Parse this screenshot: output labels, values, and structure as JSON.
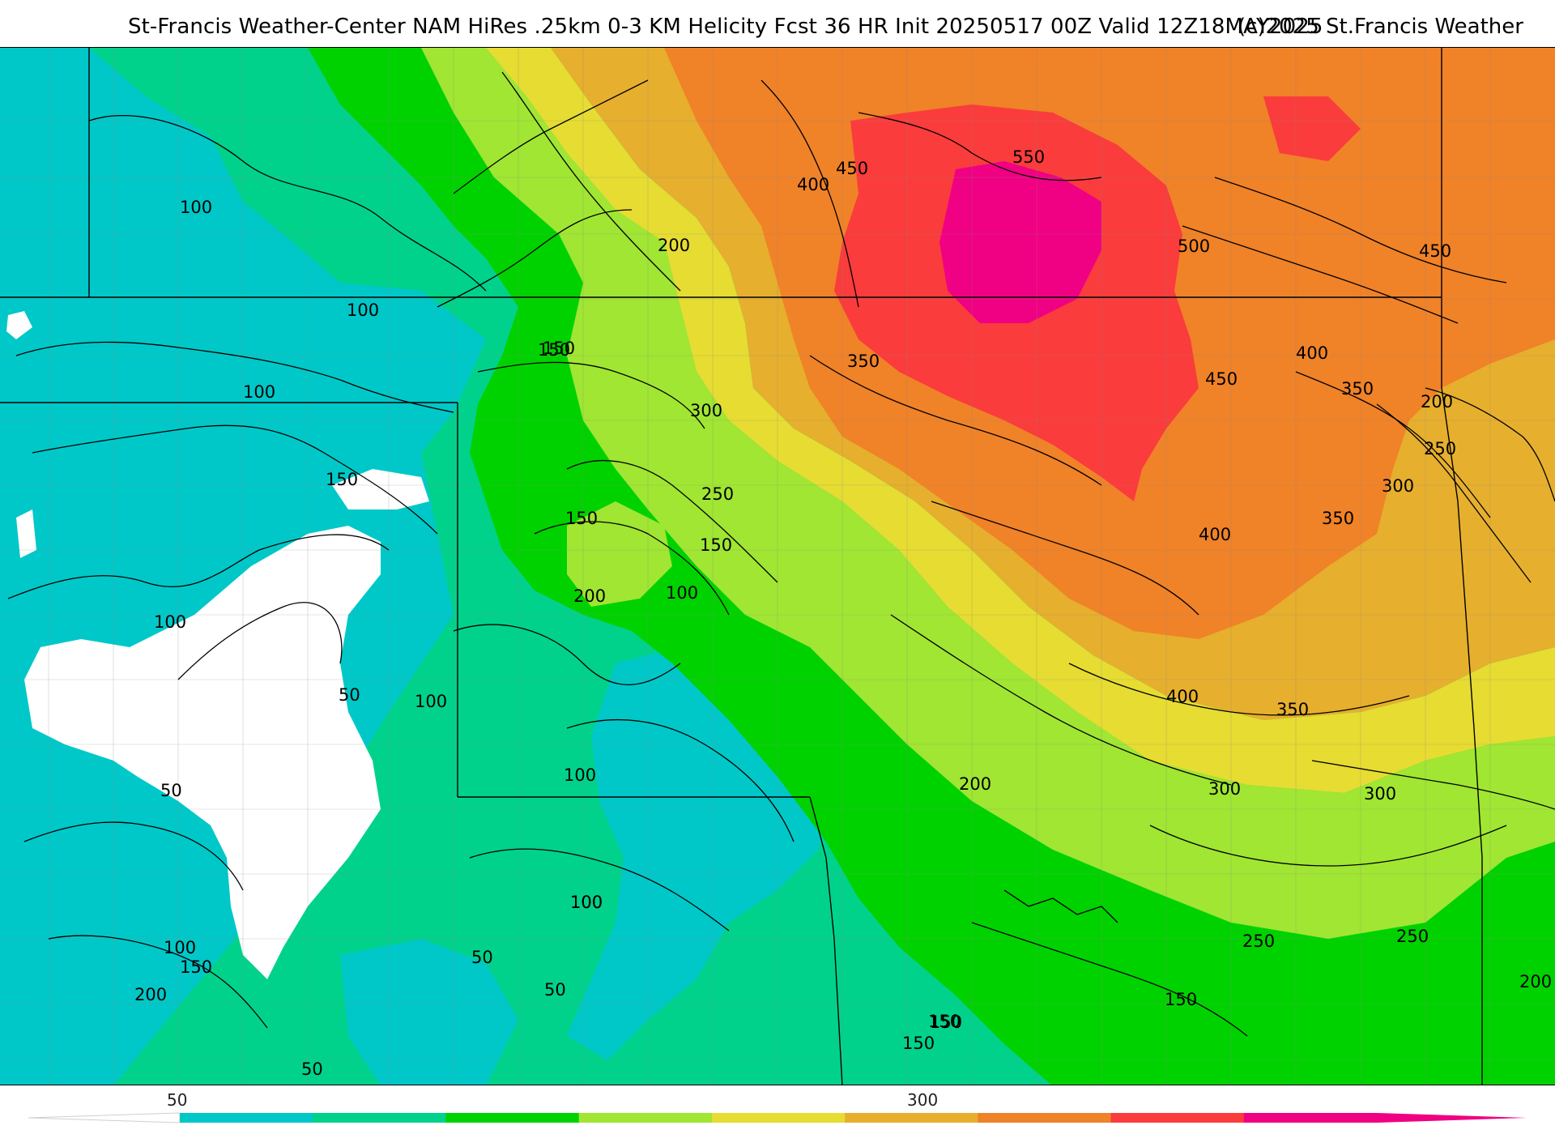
{
  "header": {
    "title": "St-Francis Weather-Center NAM HiRes .25km 0-3 KM Helicity Fcst 36 HR Init 20250517 00Z  Valid 12Z18MAY2025",
    "copyright": "(c)2025 St.Francis Weather"
  },
  "colors": {
    "lt50": "#ffffff",
    "50_100": "#00c8c8",
    "100_150": "#00d28c",
    "150_200": "#00d200",
    "200_250": "#a0e632",
    "250_300": "#e6dc32",
    "300_350": "#e6af2d",
    "350_400": "#f08228",
    "400_450": "#fa3c3c",
    "gt450": "#f00082"
  },
  "colorbar": {
    "tick_labels": [
      "50",
      "300"
    ],
    "bins": [
      "50_100",
      "100_150",
      "150_200",
      "200_250",
      "250_300",
      "300_350",
      "350_400",
      "400_450",
      "gt450"
    ]
  },
  "contour_labels": [
    "100",
    "100",
    "100",
    "150",
    "150",
    "150",
    "100",
    "50",
    "50",
    "100",
    "100",
    "150",
    "200",
    "50",
    "50",
    "200",
    "100",
    "50",
    "100",
    "200",
    "150",
    "300",
    "250",
    "150",
    "200",
    "100",
    "100",
    "100",
    "200",
    "150",
    "150",
    "400",
    "450",
    "550",
    "350",
    "500",
    "450",
    "400",
    "450",
    "350",
    "200",
    "250",
    "300",
    "350",
    "400",
    "400",
    "350",
    "300",
    "300",
    "250",
    "250",
    "200",
    "150",
    "150"
  ]
}
